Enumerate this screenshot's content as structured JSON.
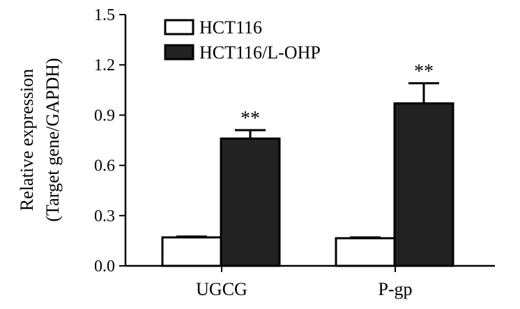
{
  "chart_data": {
    "type": "bar",
    "categories": [
      "UGCG",
      "P-gp"
    ],
    "series": [
      {
        "name": "HCT116",
        "values": [
          0.17,
          0.165
        ],
        "errors": [
          0.005,
          0.005
        ],
        "color": "#ffffff"
      },
      {
        "name": "HCT116/L-OHP",
        "values": [
          0.76,
          0.97
        ],
        "errors": [
          0.05,
          0.12
        ],
        "color": "#222222"
      }
    ],
    "significance": [
      "**",
      "**"
    ],
    "ylabel_lines": [
      "Relative expression",
      "(Target gene/GAPDH)"
    ],
    "ylim": [
      0,
      1.5
    ],
    "yticks": [
      "0.0",
      "0.3",
      "0.6",
      "0.9",
      "1.2",
      "1.5"
    ],
    "grid": false,
    "legend_position": "top-left"
  }
}
